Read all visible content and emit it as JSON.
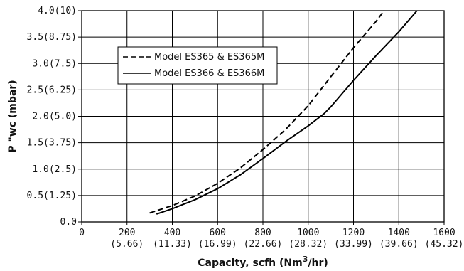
{
  "chart_data": {
    "type": "line",
    "xlabel": "Capacity, scfh (Nm",
    "xlabel_sup": "3",
    "xlabel_tail": "/hr)",
    "ylabel": "P \"wc (mbar)",
    "xlim": [
      0,
      1600
    ],
    "ylim": [
      0,
      4.0
    ],
    "grid": true,
    "legend_position": "top-left",
    "x_ticks": [
      {
        "value": 0,
        "label": "0",
        "sublabel": ""
      },
      {
        "value": 200,
        "label": "200",
        "sublabel": "(5.66)"
      },
      {
        "value": 400,
        "label": "400",
        "sublabel": "(11.33)"
      },
      {
        "value": 600,
        "label": "600",
        "sublabel": "(16.99)"
      },
      {
        "value": 800,
        "label": "800",
        "sublabel": "(22.66)"
      },
      {
        "value": 1000,
        "label": "1000",
        "sublabel": "(28.32)"
      },
      {
        "value": 1200,
        "label": "1200",
        "sublabel": "(33.99)"
      },
      {
        "value": 1400,
        "label": "1400",
        "sublabel": "(39.66)"
      },
      {
        "value": 1600,
        "label": "1600",
        "sublabel": "(45.32)"
      }
    ],
    "y_ticks": [
      {
        "value": 0.0,
        "label": "0.0"
      },
      {
        "value": 0.5,
        "label": "0.5(1.25)"
      },
      {
        "value": 1.0,
        "label": "1.0(2.5)"
      },
      {
        "value": 1.5,
        "label": "1.5(3.75)"
      },
      {
        "value": 2.0,
        "label": "2.0(5.0)"
      },
      {
        "value": 2.5,
        "label": "2.5(6.25)"
      },
      {
        "value": 3.0,
        "label": "3.0(7.5)"
      },
      {
        "value": 3.5,
        "label": "3.5(8.75)"
      },
      {
        "value": 4.0,
        "label": "4.0(10)"
      }
    ],
    "series": [
      {
        "name": "Model ES365 & ES365M",
        "dash": "dashed",
        "color": "#000000",
        "points": [
          [
            300,
            0.17
          ],
          [
            400,
            0.31
          ],
          [
            500,
            0.49
          ],
          [
            600,
            0.73
          ],
          [
            700,
            1.02
          ],
          [
            800,
            1.37
          ],
          [
            900,
            1.75
          ],
          [
            1000,
            2.2
          ],
          [
            1100,
            2.75
          ],
          [
            1200,
            3.3
          ],
          [
            1300,
            3.8
          ],
          [
            1335,
            4.0
          ]
        ]
      },
      {
        "name": "Model ES366 & ES366M",
        "dash": "solid",
        "color": "#000000",
        "points": [
          [
            330,
            0.15
          ],
          [
            400,
            0.25
          ],
          [
            500,
            0.42
          ],
          [
            600,
            0.63
          ],
          [
            700,
            0.89
          ],
          [
            800,
            1.2
          ],
          [
            900,
            1.52
          ],
          [
            1000,
            1.82
          ],
          [
            1070,
            2.05
          ],
          [
            1100,
            2.18
          ],
          [
            1200,
            2.68
          ],
          [
            1300,
            3.15
          ],
          [
            1400,
            3.6
          ],
          [
            1480,
            4.0
          ]
        ]
      }
    ]
  }
}
